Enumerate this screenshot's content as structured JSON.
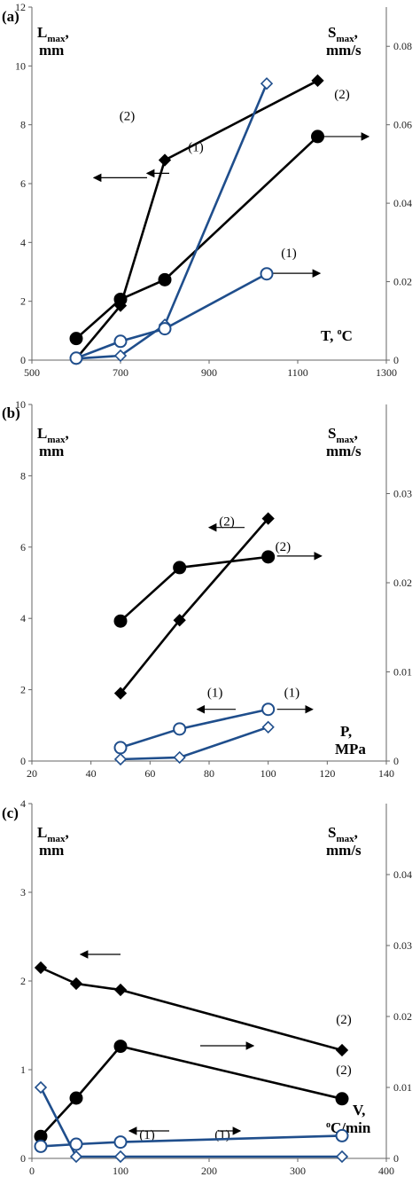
{
  "colors": {
    "black_series": "#000000",
    "blue_series": "#1f4e8c",
    "axis": "#666666"
  },
  "chart_data": [
    {
      "type": "line",
      "panel_label": "(a)",
      "left_axis_label": {
        "main": "L",
        "sub": "max",
        "tail": ",",
        "unit": "mm"
      },
      "right_axis_label": {
        "main": "S",
        "sub": "max",
        "tail": ",",
        "unit": "mm/s"
      },
      "x_label": {
        "main": "T, ",
        "sup": "o",
        "tail": "C"
      },
      "xlim": [
        500,
        1300
      ],
      "x_ticks": [
        "500",
        "700",
        "900",
        "1100",
        "1300"
      ],
      "ylim_left": [
        0,
        12
      ],
      "y_ticks_left": [
        "0",
        "2",
        "4",
        "6",
        "8",
        "10",
        "12"
      ],
      "ylim_right": [
        0,
        0.09
      ],
      "y_ticks_right": [
        "0",
        "0.02",
        "0.04",
        "0.06",
        "0.08"
      ],
      "series": [
        {
          "axis": "left",
          "color": "black",
          "marker": "diamond",
          "fill": "filled",
          "x": [
            600,
            700,
            800,
            1145
          ],
          "y": [
            0.05,
            1.85,
            6.8,
            9.5
          ]
        },
        {
          "axis": "right",
          "color": "black",
          "marker": "circle",
          "fill": "filled",
          "x": [
            600,
            700,
            800,
            1145
          ],
          "y": [
            0.0055,
            0.0155,
            0.0205,
            0.057
          ]
        },
        {
          "axis": "left",
          "color": "blue",
          "marker": "diamond",
          "fill": "open",
          "x": [
            600,
            700,
            800,
            1030
          ],
          "y": [
            0.05,
            0.15,
            1.2,
            9.4
          ]
        },
        {
          "axis": "right",
          "color": "blue",
          "marker": "circle",
          "fill": "open",
          "x": [
            600,
            700,
            800,
            1030
          ],
          "y": [
            0.0005,
            0.0048,
            0.008,
            0.022
          ]
        }
      ],
      "annotations": [
        {
          "text": "(2)",
          "x": 715,
          "yl": 8.15
        },
        {
          "text": "(1)",
          "x": 870,
          "yl": 7.1
        },
        {
          "text": "(2)",
          "x": 1200,
          "yl": 8.9
        },
        {
          "text": "(1)",
          "x": 1080,
          "yl": 3.5
        }
      ],
      "arrows": [
        {
          "axis": "left",
          "x1": 760,
          "y1": 6.2,
          "x2": 640,
          "y2": 6.2
        },
        {
          "axis": "left",
          "x1": 810,
          "y1": 6.35,
          "x2": 760,
          "y2": 6.35
        },
        {
          "axis": "left",
          "x1": 1160,
          "y1": 7.6,
          "x2": 1260,
          "y2": 7.6
        },
        {
          "axis": "left",
          "x1": 1040,
          "y1": 2.95,
          "x2": 1150,
          "y2": 2.95
        }
      ]
    },
    {
      "type": "line",
      "panel_label": "(b)",
      "left_axis_label": {
        "main": "L",
        "sub": "max",
        "tail": ",",
        "unit": "mm"
      },
      "right_axis_label": {
        "main": "S",
        "sub": "max",
        "tail": ",",
        "unit": "mm/s"
      },
      "x_label": {
        "main": "P,",
        "sup": "",
        "tail": "",
        "unit": "MPa"
      },
      "xlim": [
        20,
        140
      ],
      "x_ticks": [
        "20",
        "40",
        "60",
        "80",
        "100",
        "120",
        "140"
      ],
      "ylim_left": [
        0,
        10
      ],
      "y_ticks_left": [
        "0",
        "2",
        "4",
        "6",
        "8",
        "10"
      ],
      "ylim_right": [
        0,
        0.04
      ],
      "y_ticks_right": [
        "0",
        "0.01",
        "0.02",
        "0.03"
      ],
      "series": [
        {
          "axis": "left",
          "color": "black",
          "marker": "diamond",
          "fill": "filled",
          "x": [
            50,
            70,
            100
          ],
          "y": [
            1.9,
            3.95,
            6.8
          ]
        },
        {
          "axis": "right",
          "color": "black",
          "marker": "circle",
          "fill": "filled",
          "x": [
            50,
            70,
            100
          ],
          "y": [
            0.0157,
            0.0217,
            0.0229
          ]
        },
        {
          "axis": "left",
          "color": "blue",
          "marker": "diamond",
          "fill": "open",
          "x": [
            50,
            70,
            100
          ],
          "y": [
            0.05,
            0.1,
            0.95
          ]
        },
        {
          "axis": "right",
          "color": "blue",
          "marker": "circle",
          "fill": "open",
          "x": [
            50,
            70,
            100
          ],
          "y": [
            0.0015,
            0.0036,
            0.0058
          ]
        }
      ],
      "annotations": [
        {
          "text": "(2)",
          "x": 86,
          "yl": 6.6
        },
        {
          "text": "(2)",
          "x": 105,
          "yl": 5.9
        },
        {
          "text": "(1)",
          "x": 82,
          "yl": 1.8
        },
        {
          "text": "(1)",
          "x": 108,
          "yl": 1.8
        }
      ],
      "arrows": [
        {
          "axis": "left",
          "x1": 92,
          "y1": 6.55,
          "x2": 80,
          "y2": 6.55
        },
        {
          "axis": "left",
          "x1": 103,
          "y1": 5.75,
          "x2": 118,
          "y2": 5.75
        },
        {
          "axis": "left",
          "x1": 89,
          "y1": 1.45,
          "x2": 76,
          "y2": 1.45
        },
        {
          "axis": "left",
          "x1": 103,
          "y1": 1.45,
          "x2": 115,
          "y2": 1.45
        }
      ]
    },
    {
      "type": "line",
      "panel_label": "(c)",
      "left_axis_label": {
        "main": "L",
        "sub": "max",
        "tail": ",",
        "unit": "mm"
      },
      "right_axis_label": {
        "main": "S",
        "sub": "max",
        "tail": ",",
        "unit": "mm/s"
      },
      "x_label": {
        "main": "V,",
        "sup": "o",
        "tail": "C/min"
      },
      "xlim": [
        0,
        400
      ],
      "x_ticks": [
        "0",
        "100",
        "200",
        "300",
        "400"
      ],
      "ylim_left": [
        0,
        4
      ],
      "y_ticks_left": [
        "0",
        "1",
        "2",
        "3",
        "4"
      ],
      "ylim_right": [
        0,
        0.05
      ],
      "y_ticks_right": [
        "0",
        "0.01",
        "0.02",
        "0.03",
        "0.04"
      ],
      "series": [
        {
          "axis": "left",
          "color": "black",
          "marker": "diamond",
          "fill": "filled",
          "x": [
            10,
            50,
            100,
            350
          ],
          "y": [
            2.15,
            1.97,
            1.9,
            1.22
          ]
        },
        {
          "axis": "right",
          "color": "black",
          "marker": "circle",
          "fill": "filled",
          "x": [
            10,
            50,
            100,
            350
          ],
          "y": [
            0.0031,
            0.0085,
            0.0158,
            0.0084
          ]
        },
        {
          "axis": "left",
          "color": "blue",
          "marker": "diamond",
          "fill": "open",
          "x": [
            10,
            50,
            100,
            350
          ],
          "y": [
            0.8,
            0.02,
            0.02,
            0.02
          ]
        },
        {
          "axis": "right",
          "color": "blue",
          "marker": "circle",
          "fill": "open",
          "x": [
            10,
            50,
            100,
            350
          ],
          "y": [
            0.0017,
            0.002,
            0.0023,
            0.0032
          ]
        }
      ],
      "annotations": [
        {
          "text": "(2)",
          "x": 352,
          "yl": 1.52
        },
        {
          "text": "(2)",
          "x": 352,
          "yl": 0.95
        },
        {
          "text": "(1)",
          "x": 130,
          "yl": 0.22
        },
        {
          "text": "(1)",
          "x": 215,
          "yl": 0.22
        }
      ],
      "arrows": [
        {
          "axis": "left",
          "x1": 100,
          "y1": 2.3,
          "x2": 55,
          "y2": 2.3
        },
        {
          "axis": "left",
          "x1": 190,
          "y1": 1.27,
          "x2": 250,
          "y2": 1.27
        },
        {
          "axis": "left",
          "x1": 155,
          "y1": 0.31,
          "x2": 110,
          "y2": 0.31
        },
        {
          "axis": "left",
          "x1": 210,
          "y1": 0.31,
          "x2": 235,
          "y2": 0.31
        }
      ]
    }
  ]
}
